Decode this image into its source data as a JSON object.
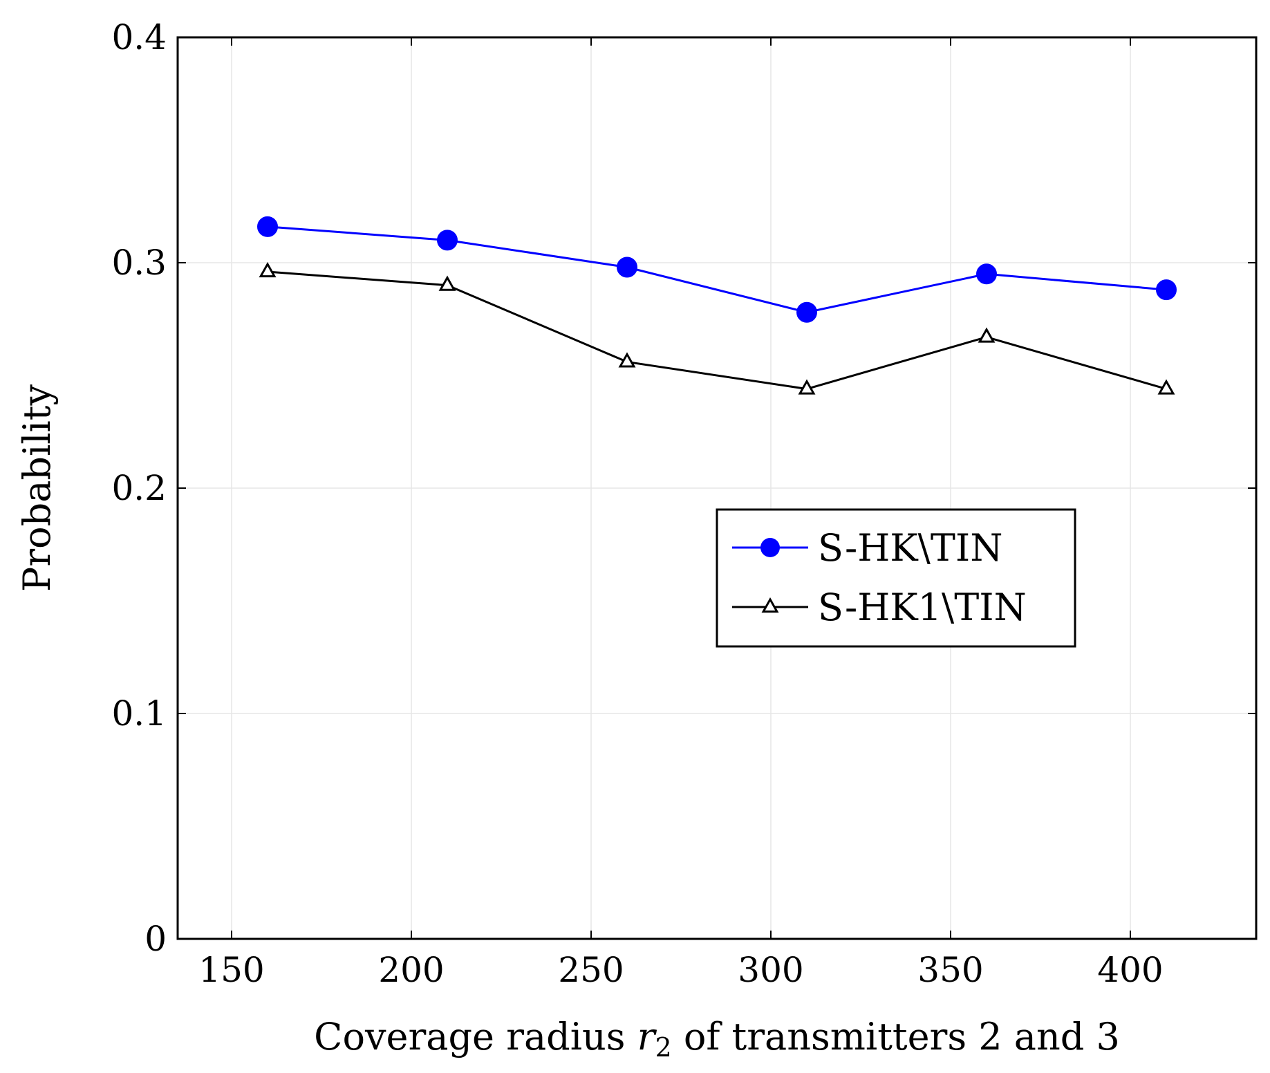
{
  "chart_data": {
    "type": "line",
    "title": "",
    "xlabel": {
      "prefix": "Coverage radius",
      "var": "r",
      "sub": "2",
      "suffix": "of transmitters 2 and 3"
    },
    "ylabel": "Probability",
    "xlim": [
      135,
      435
    ],
    "ylim": [
      0,
      0.4
    ],
    "xticks": [
      150,
      200,
      250,
      300,
      350,
      400
    ],
    "yticks": [
      0,
      0.1,
      0.2,
      0.3,
      0.4
    ],
    "xtick_labels": [
      "150",
      "200",
      "250",
      "300",
      "350",
      "400"
    ],
    "ytick_labels": [
      "0",
      "0.1",
      "0.2",
      "0.3",
      "0.4"
    ],
    "grid": true,
    "legend_position": "center-right",
    "series": [
      {
        "name": "S-HK\\TIN",
        "color": "#0000ff",
        "marker": "circle",
        "x": [
          160,
          210,
          260,
          310,
          360,
          410
        ],
        "y": [
          0.316,
          0.31,
          0.298,
          0.278,
          0.295,
          0.288
        ]
      },
      {
        "name": "S-HK1\\TIN",
        "color": "#000000",
        "marker": "triangle-open",
        "x": [
          160,
          210,
          260,
          310,
          360,
          410
        ],
        "y": [
          0.296,
          0.29,
          0.256,
          0.244,
          0.267,
          0.244
        ]
      }
    ]
  }
}
